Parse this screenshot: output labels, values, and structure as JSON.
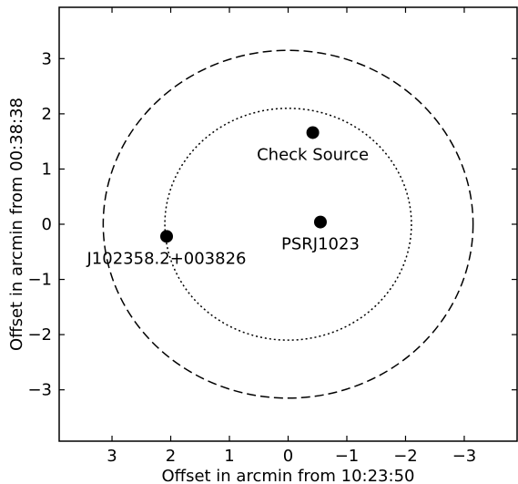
{
  "chart_data": {
    "type": "scatter",
    "title": "",
    "xlabel": "Offset in arcmin from 10:23:50",
    "ylabel": "Offset in arcmin from 00:38:38",
    "xlim": [
      3.9,
      -3.9
    ],
    "ylim": [
      -3.93,
      3.93
    ],
    "x_inverted": true,
    "grid": false,
    "legend": "none",
    "xticks": [
      {
        "value": 3,
        "label": "3"
      },
      {
        "value": 2,
        "label": "2"
      },
      {
        "value": 1,
        "label": "1"
      },
      {
        "value": 0,
        "label": "0"
      },
      {
        "value": -1,
        "label": "−1"
      },
      {
        "value": -2,
        "label": "−2"
      },
      {
        "value": -3,
        "label": "−3"
      }
    ],
    "yticks": [
      {
        "value": 3,
        "label": "3"
      },
      {
        "value": 2,
        "label": "2"
      },
      {
        "value": 1,
        "label": "1"
      },
      {
        "value": 0,
        "label": "0"
      },
      {
        "value": -1,
        "label": "−1"
      },
      {
        "value": -2,
        "label": "−2"
      },
      {
        "value": -3,
        "label": "−3"
      }
    ],
    "circles": [
      {
        "cx": 0,
        "cy": 0,
        "radius": 3.15,
        "style": "dashed",
        "color": "#000000"
      },
      {
        "cx": 0,
        "cy": 0,
        "radius": 2.1,
        "style": "dotted",
        "color": "#000000"
      }
    ],
    "points": [
      {
        "x": -0.42,
        "y": 1.66,
        "label": "Check Source"
      },
      {
        "x": -0.55,
        "y": 0.04,
        "label": "PSRJ1023"
      },
      {
        "x": 2.07,
        "y": -0.22,
        "label": "J102358.2+003826"
      }
    ],
    "marker_color": "#000000"
  }
}
